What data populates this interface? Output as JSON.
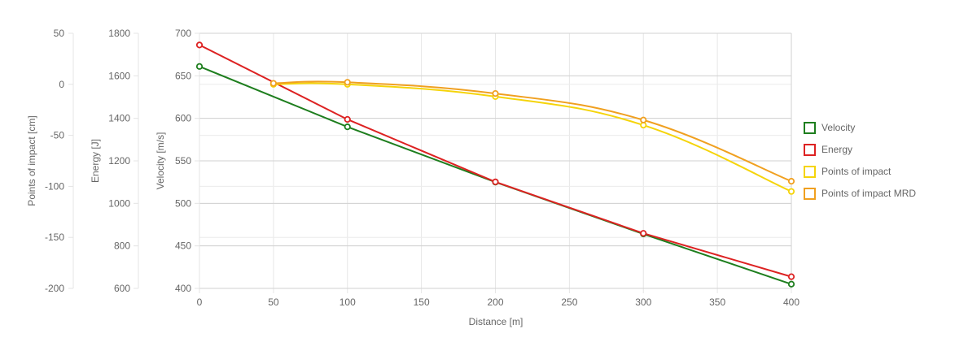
{
  "chart_data": {
    "type": "line",
    "xlabel": "Distance [m]",
    "x_ticks": [
      0,
      50,
      100,
      150,
      200,
      250,
      300,
      350,
      400
    ],
    "xlim": [
      0,
      400
    ],
    "grid": true,
    "legend_position": "right",
    "axes": [
      {
        "id": "poi",
        "label": "Points of impact [cm]",
        "range": [
          -200,
          50
        ],
        "ticks": [
          50,
          0,
          -50,
          -100,
          -150,
          -200
        ],
        "tick_labels": [
          "50",
          "0",
          "-50",
          "-100",
          "-150",
          "-200"
        ]
      },
      {
        "id": "energy",
        "label": "Energy [J]",
        "range": [
          600,
          1800
        ],
        "ticks": [
          1800,
          1600,
          1400,
          1200,
          1000,
          800,
          600
        ],
        "tick_labels": [
          "1800",
          "1600",
          "1400",
          "1200",
          "1000",
          "800",
          "600"
        ]
      },
      {
        "id": "velocity",
        "label": "Velocity [m/s]",
        "range": [
          400,
          700
        ],
        "ticks": [
          700,
          650,
          600,
          550,
          500,
          450,
          400
        ],
        "tick_labels": [
          "700",
          "650",
          "600",
          "550",
          "500",
          "450",
          "400"
        ]
      }
    ],
    "series": [
      {
        "name": "Velocity",
        "axis": "velocity",
        "color": "#1e7e1e",
        "curved": false,
        "points": [
          [
            0,
            661
          ],
          [
            100,
            590
          ],
          [
            200,
            525
          ],
          [
            300,
            464
          ],
          [
            400,
            405
          ]
        ]
      },
      {
        "name": "Energy",
        "axis": "energy",
        "color": "#dd2222",
        "curved": false,
        "points": [
          [
            0,
            1745
          ],
          [
            100,
            1395
          ],
          [
            200,
            1101
          ],
          [
            300,
            859
          ],
          [
            400,
            655
          ]
        ]
      },
      {
        "name": "Points of impact",
        "axis": "poi",
        "color": "#f5d40a",
        "curved": true,
        "points": [
          [
            50,
            0
          ],
          [
            100,
            0
          ],
          [
            200,
            -12
          ],
          [
            300,
            -40
          ],
          [
            400,
            -105
          ]
        ]
      },
      {
        "name": "Points of impact MRD",
        "axis": "poi",
        "color": "#f0a020",
        "curved": true,
        "points": [
          [
            50,
            1
          ],
          [
            100,
            2
          ],
          [
            200,
            -9
          ],
          [
            300,
            -35
          ],
          [
            400,
            -95
          ]
        ]
      }
    ]
  }
}
